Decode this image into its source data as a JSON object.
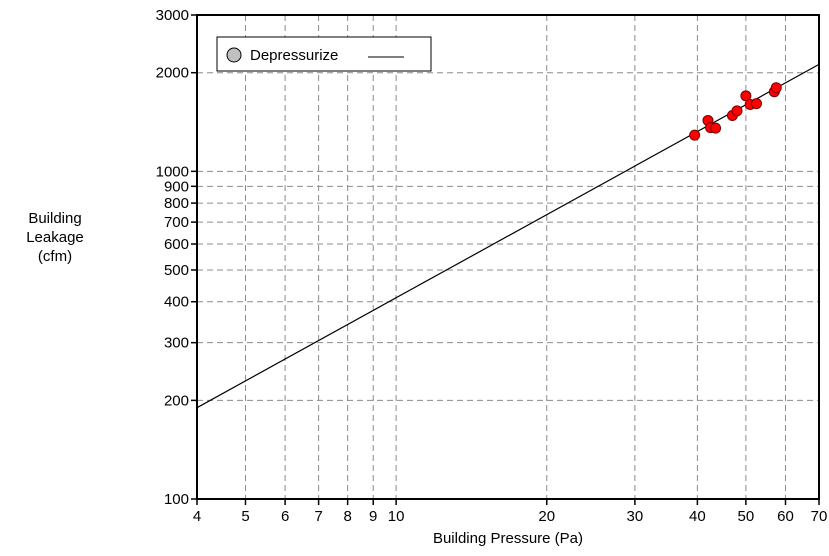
{
  "chart_data": {
    "type": "scatter",
    "xlabel": "Building Pressure (Pa)",
    "ylabel": [
      "Building",
      "Leakage",
      "(cfm)"
    ],
    "x_scale": "log",
    "y_scale": "log",
    "xlim": [
      4,
      70
    ],
    "ylim": [
      100,
      3000
    ],
    "x_ticks": [
      4,
      5,
      6,
      7,
      8,
      9,
      10,
      20,
      30,
      40,
      50,
      60,
      70
    ],
    "y_ticks": [
      100,
      200,
      300,
      400,
      500,
      600,
      700,
      800,
      900,
      1000,
      2000,
      3000
    ],
    "grid": true,
    "legend": {
      "placement": "top-left",
      "label": "Depressurize"
    },
    "series": [
      {
        "name": "Depressurize",
        "kind": "points",
        "color": "#ff0000",
        "x": [
          39.5,
          42,
          42.5,
          43.5,
          47,
          48,
          50,
          51,
          52.5,
          57,
          57.5
        ],
        "y": [
          1290,
          1430,
          1360,
          1355,
          1480,
          1530,
          1700,
          1600,
          1610,
          1750,
          1800
        ]
      },
      {
        "kind": "fit-line",
        "color": "#000000",
        "x": [
          4,
          70
        ],
        "y": [
          190,
          2120
        ]
      }
    ]
  }
}
